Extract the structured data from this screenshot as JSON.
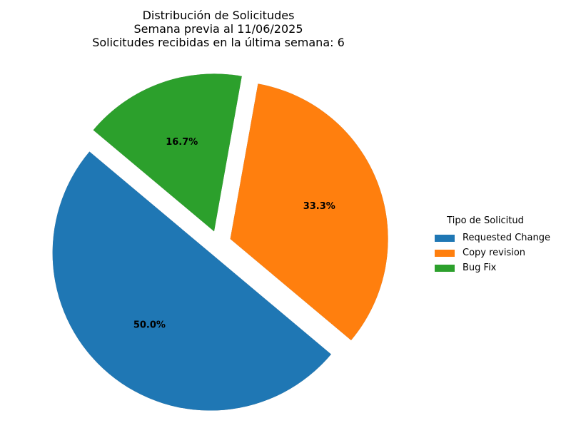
{
  "chart_data": {
    "type": "pie",
    "title_lines": [
      "Distribución de Solicitudes",
      "Semana previa al 11/06/2025",
      "Solicitudes recibidas en la última semana: 6"
    ],
    "slices": [
      {
        "label": "Requested Change",
        "value": 50.0,
        "pct_text": "50.0%",
        "color": "#1f77b4",
        "exploded": true
      },
      {
        "label": "Copy revision",
        "value": 33.3,
        "pct_text": "33.3%",
        "color": "#ff7f0e",
        "exploded": true
      },
      {
        "label": "Bug Fix",
        "value": 16.7,
        "pct_text": "16.7%",
        "color": "#2ca02c",
        "exploded": true
      }
    ],
    "shadow": true,
    "legend_title": "Tipo de Solicitud",
    "legend_position": "right"
  }
}
